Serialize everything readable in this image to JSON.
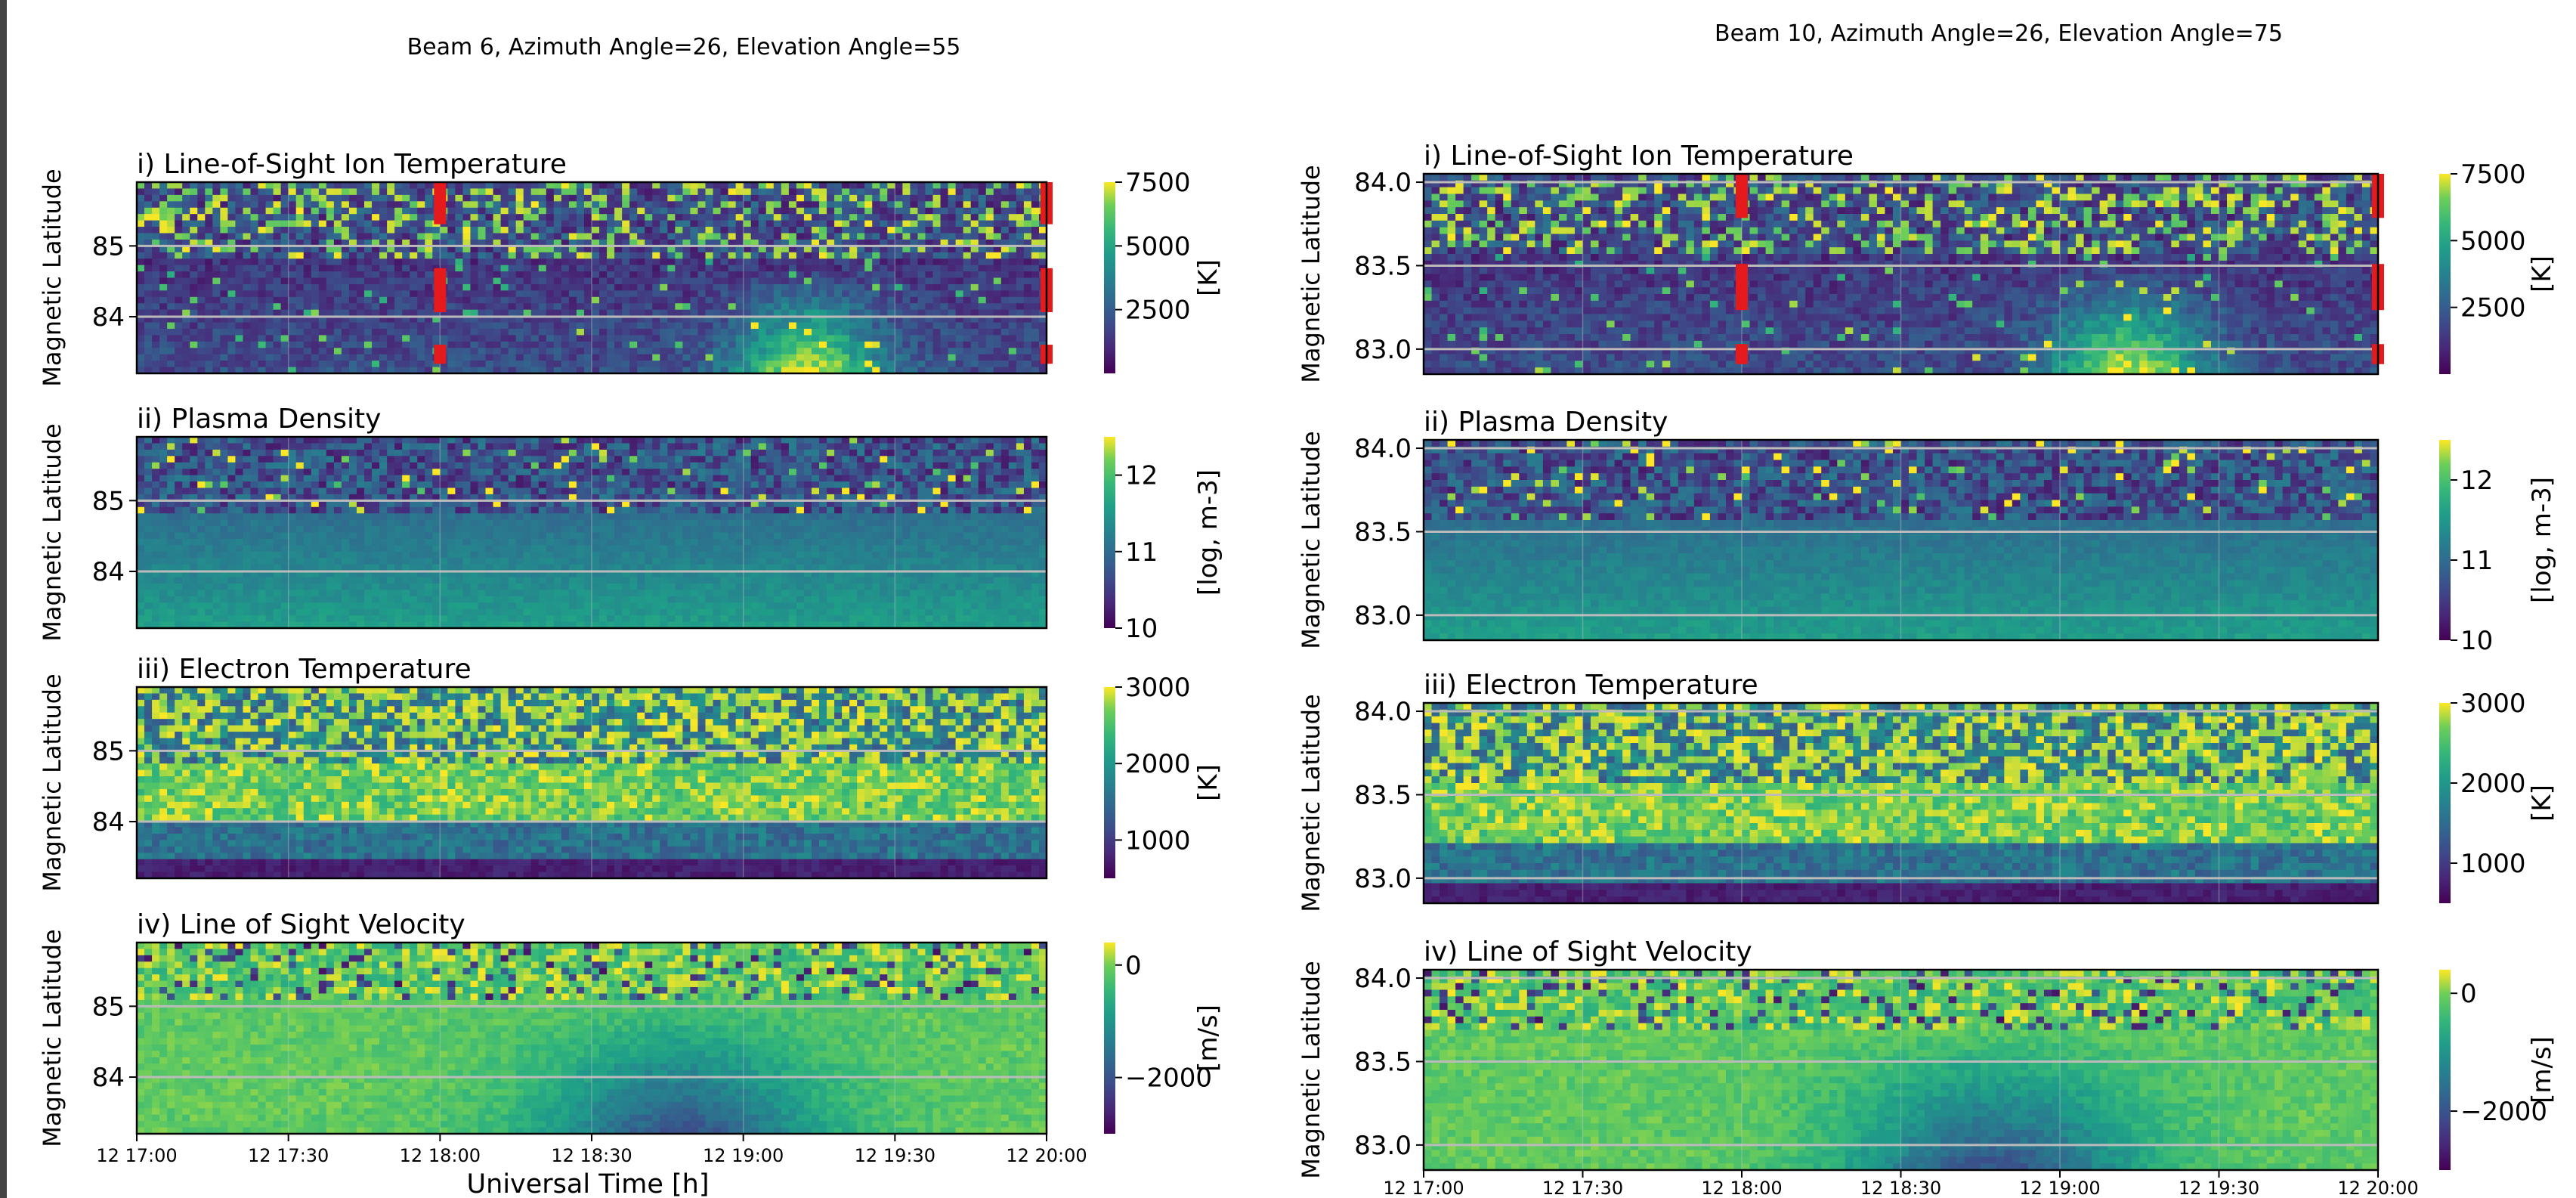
{
  "figure_title_left": "Beam 6, Azimuth Angle=26, Elevation Angle=55",
  "figure_title_right": "Beam 10, Azimuth Angle=26, Elevation Angle=75",
  "xlabel": "Universal Time [h]",
  "chart_data": [
    {
      "type": "heatmap",
      "beam": 6,
      "x_ticks": [
        "12 17:00",
        "12 17:30",
        "12 18:00",
        "12 18:30",
        "12 19:00",
        "12 19:30",
        "12 20:00"
      ],
      "xlim": [
        "12 17:00",
        "12 20:00"
      ],
      "xlabel": "Universal Time [h]",
      "panels": [
        {
          "title": "i) Line-of-Sight Ion Temperature",
          "ylabel": "Magnetic Latitude",
          "y_ticks": [
            "84",
            "85"
          ],
          "ylim": [
            83.2,
            85.9
          ],
          "colorbar": {
            "ticks": [
              "2500",
              "5000",
              "7500"
            ],
            "range": [
              0,
              7500
            ],
            "label": "[K]",
            "colormap": "viridis"
          },
          "red_markers_at": [
            "12 18:00",
            "12 20:00"
          ]
        },
        {
          "title": "ii) Plasma Density",
          "ylabel": "Magnetic Latitude",
          "y_ticks": [
            "84",
            "85"
          ],
          "ylim": [
            83.2,
            85.9
          ],
          "colorbar": {
            "ticks": [
              "10",
              "11",
              "12"
            ],
            "range": [
              10,
              12.5
            ],
            "label": "[log, m-3]",
            "colormap": "viridis"
          }
        },
        {
          "title": "iii) Electron Temperature",
          "ylabel": "Magnetic Latitude",
          "y_ticks": [
            "84",
            "85"
          ],
          "ylim": [
            83.2,
            85.9
          ],
          "colorbar": {
            "ticks": [
              "1000",
              "2000",
              "3000"
            ],
            "range": [
              500,
              3000
            ],
            "label": "[K]",
            "colormap": "viridis"
          }
        },
        {
          "title": "iv) Line of Sight Velocity",
          "ylabel": "Magnetic Latitude",
          "y_ticks": [
            "84",
            "85"
          ],
          "ylim": [
            83.2,
            85.9
          ],
          "colorbar": {
            "ticks": [
              "−2000",
              "0"
            ],
            "range": [
              -3000,
              400
            ],
            "label": "[m/s]",
            "colormap": "viridis"
          }
        }
      ]
    },
    {
      "type": "heatmap",
      "beam": 10,
      "x_ticks": [
        "12 17:00",
        "12 17:30",
        "12 18:00",
        "12 18:30",
        "12 19:00",
        "12 19:30",
        "12 20:00"
      ],
      "xlim": [
        "12 17:00",
        "12 20:00"
      ],
      "panels": [
        {
          "title": "i) Line-of-Sight Ion Temperature",
          "ylabel": "Magnetic Latitude",
          "y_ticks": [
            "83.0",
            "83.5",
            "84.0"
          ],
          "ylim": [
            82.85,
            84.05
          ],
          "colorbar": {
            "ticks": [
              "2500",
              "5000",
              "7500"
            ],
            "range": [
              0,
              7500
            ],
            "label": "[K]",
            "colormap": "viridis"
          },
          "red_markers_at": [
            "12 18:00",
            "12 20:00"
          ]
        },
        {
          "title": "ii) Plasma Density",
          "ylabel": "Magnetic Latitude",
          "y_ticks": [
            "83.0",
            "83.5",
            "84.0"
          ],
          "ylim": [
            82.85,
            84.05
          ],
          "colorbar": {
            "ticks": [
              "10",
              "11",
              "12"
            ],
            "range": [
              10,
              12.5
            ],
            "label": "[log, m-3]",
            "colormap": "viridis"
          }
        },
        {
          "title": "iii) Electron Temperature",
          "ylabel": "Magnetic Latitude",
          "y_ticks": [
            "83.0",
            "83.5",
            "84.0"
          ],
          "ylim": [
            82.85,
            84.05
          ],
          "colorbar": {
            "ticks": [
              "1000",
              "2000",
              "3000"
            ],
            "range": [
              500,
              3000
            ],
            "label": "[K]",
            "colormap": "viridis"
          }
        },
        {
          "title": "iv) Line of Sight Velocity",
          "ylabel": "Magnetic Latitude",
          "y_ticks": [
            "83.0",
            "83.5",
            "84.0"
          ],
          "ylim": [
            82.85,
            84.05
          ],
          "colorbar": {
            "ticks": [
              "−2000",
              "0"
            ],
            "range": [
              -3000,
              400
            ],
            "label": "[m/s]",
            "colormap": "viridis"
          }
        }
      ]
    }
  ]
}
